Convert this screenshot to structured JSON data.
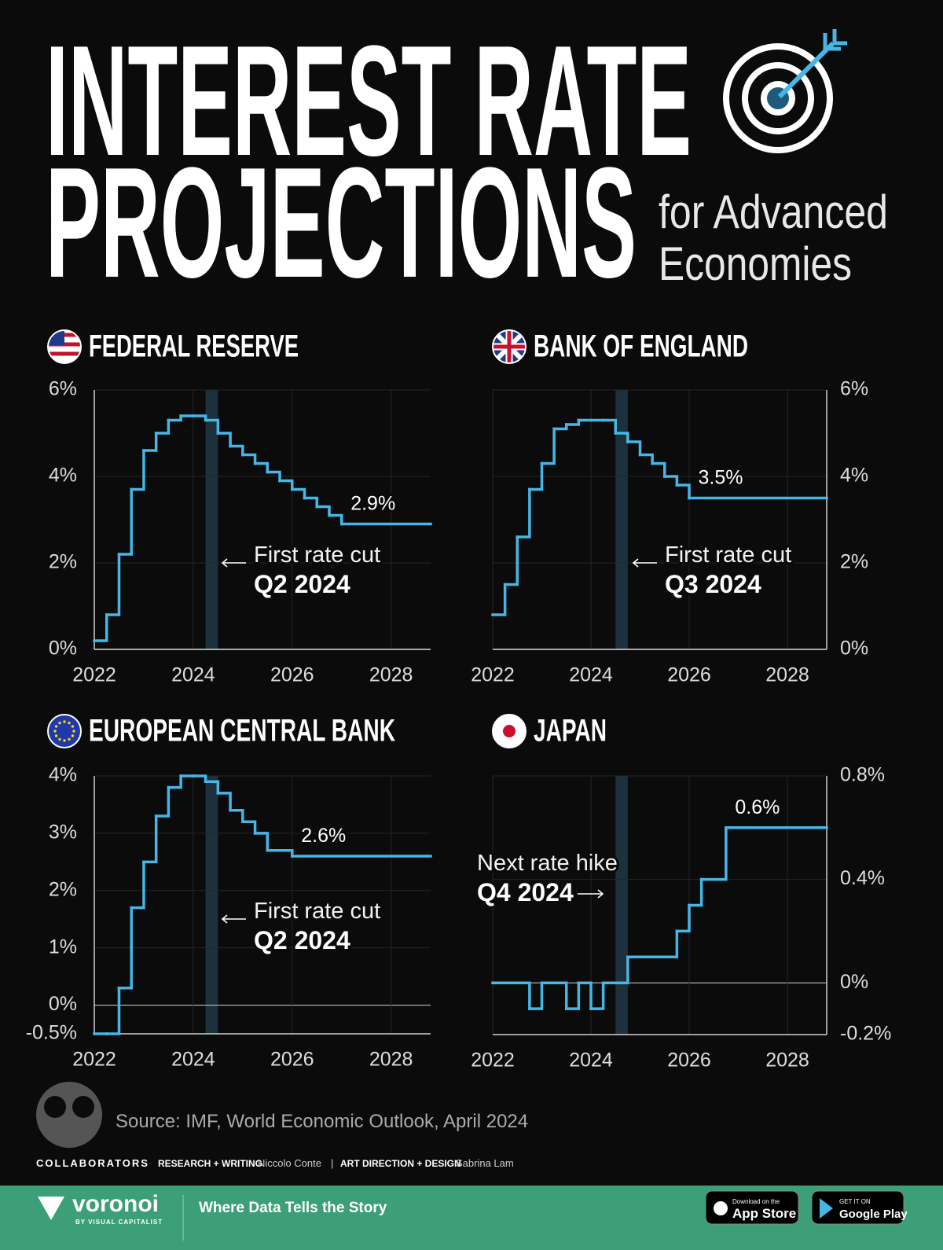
{
  "title_lines": [
    "INTEREST RATE",
    "PROJECTIONS"
  ],
  "subtitle_lines": [
    "for Advanced",
    "Economies"
  ],
  "chart_data": [
    {
      "type": "line",
      "step": "post",
      "title": "FEDERAL RESERVE",
      "flag": "us",
      "color": "#45b6e6",
      "x": [
        2022,
        2022.25,
        2022.5,
        2022.75,
        2023,
        2023.25,
        2023.5,
        2023.75,
        2024,
        2024.25,
        2024.5,
        2024.75,
        2025,
        2025.25,
        2025.5,
        2025.75,
        2026,
        2026.25,
        2026.5,
        2026.75,
        2027
      ],
      "values": [
        0.2,
        0.8,
        2.2,
        3.7,
        4.6,
        5.0,
        5.3,
        5.4,
        5.4,
        5.3,
        5.0,
        4.7,
        4.5,
        4.3,
        4.1,
        3.9,
        3.7,
        3.5,
        3.3,
        3.1,
        2.9
      ],
      "xlim": [
        2022,
        2028.8
      ],
      "xticks": [
        2022,
        2024,
        2026,
        2028
      ],
      "ylim": [
        0,
        6
      ],
      "yticks": [
        {
          "value": 0,
          "label": "0%"
        },
        {
          "value": 2,
          "label": "2%"
        },
        {
          "value": 4,
          "label": "4%"
        },
        {
          "value": 6,
          "label": "6%"
        }
      ],
      "y_axis_side": "left",
      "grid": true,
      "highlight_x": [
        2024.25,
        2024.5
      ],
      "annotation": {
        "text": "First rate cut",
        "date": "Q2 2024",
        "direction": "left"
      },
      "end_label": "2.9%"
    },
    {
      "type": "line",
      "step": "post",
      "title": "BANK OF ENGLAND",
      "flag": "uk",
      "color": "#45b6e6",
      "x": [
        2022,
        2022.25,
        2022.5,
        2022.75,
        2023,
        2023.25,
        2023.5,
        2023.75,
        2024,
        2024.25,
        2024.5,
        2024.75,
        2025,
        2025.25,
        2025.5,
        2025.75,
        2026
      ],
      "values": [
        0.8,
        1.5,
        2.6,
        3.7,
        4.3,
        5.1,
        5.2,
        5.3,
        5.3,
        5.3,
        5.0,
        4.8,
        4.5,
        4.3,
        4.0,
        3.8,
        3.5
      ],
      "xlim": [
        2022,
        2028.8
      ],
      "xticks": [
        2022,
        2024,
        2026,
        2028
      ],
      "ylim": [
        0,
        6
      ],
      "yticks": [
        {
          "value": 0,
          "label": "0%"
        },
        {
          "value": 2,
          "label": "2%"
        },
        {
          "value": 4,
          "label": "4%"
        },
        {
          "value": 6,
          "label": "6%"
        }
      ],
      "y_axis_side": "right",
      "grid": true,
      "highlight_x": [
        2024.5,
        2024.75
      ],
      "annotation": {
        "text": "First rate cut",
        "date": "Q3 2024",
        "direction": "left"
      },
      "end_label": "3.5%"
    },
    {
      "type": "line",
      "step": "post",
      "title": "EUROPEAN CENTRAL BANK",
      "flag": "eu",
      "color": "#45b6e6",
      "x": [
        2022,
        2022.25,
        2022.5,
        2022.75,
        2023,
        2023.25,
        2023.5,
        2023.75,
        2024,
        2024.25,
        2024.5,
        2024.75,
        2025,
        2025.25,
        2025.5,
        2025.75,
        2026
      ],
      "values": [
        -0.5,
        -0.5,
        0.3,
        1.7,
        2.5,
        3.3,
        3.8,
        4.0,
        4.0,
        3.9,
        3.7,
        3.4,
        3.2,
        3.0,
        2.7,
        2.7,
        2.6
      ],
      "xlim": [
        2022,
        2028.8
      ],
      "xticks": [
        2022,
        2024,
        2026,
        2028
      ],
      "ylim": [
        -0.5,
        4
      ],
      "yticks": [
        {
          "value": -0.5,
          "label": "-0.5%"
        },
        {
          "value": 0,
          "label": "0%"
        },
        {
          "value": 1,
          "label": "1%"
        },
        {
          "value": 2,
          "label": "2%"
        },
        {
          "value": 3,
          "label": "3%"
        },
        {
          "value": 4,
          "label": "4%"
        }
      ],
      "y_axis_side": "left",
      "grid": true,
      "highlight_x": [
        2024.25,
        2024.5
      ],
      "annotation": {
        "text": "First rate cut",
        "date": "Q2 2024",
        "direction": "left"
      },
      "end_label": "2.6%"
    },
    {
      "type": "line",
      "step": "post",
      "title": "JAPAN",
      "flag": "jp",
      "color": "#45b6e6",
      "x": [
        2022,
        2022.75,
        2023,
        2023.5,
        2023.75,
        2024,
        2024.25,
        2024.75,
        2025.75,
        2026,
        2026.25,
        2026.75
      ],
      "values": [
        0,
        -0.1,
        0,
        -0.1,
        0,
        -0.1,
        0,
        0.1,
        0.2,
        0.3,
        0.4,
        0.6
      ],
      "xlim": [
        2022,
        2028.8
      ],
      "xticks": [
        2022,
        2024,
        2026,
        2028
      ],
      "ylim": [
        -0.2,
        0.8
      ],
      "yticks": [
        {
          "value": -0.2,
          "label": "-0.2%"
        },
        {
          "value": 0,
          "label": "0%"
        },
        {
          "value": 0.4,
          "label": "0.4%"
        },
        {
          "value": 0.8,
          "label": "0.8%"
        }
      ],
      "y_axis_side": "right",
      "grid": true,
      "highlight_x": [
        2024.5,
        2024.75
      ],
      "annotation": {
        "text": "Next rate hike",
        "date": "Q4 2024",
        "direction": "right"
      },
      "end_label": "0.6%"
    }
  ],
  "source": "Source: IMF, World Economic Outlook, April 2024",
  "credits": {
    "label": "COLLABORATORS",
    "research_label": "RESEARCH + WRITING",
    "research": "Niccolo Conte",
    "separator": "|",
    "design_label": "ART DIRECTION + DESIGN",
    "design": "Sabrina Lam"
  },
  "footer": {
    "brand": "voronoi",
    "brand_sub": "BY VISUAL CAPITALIST",
    "tagline": "Where Data Tells the Story",
    "app_store": [
      "Download on the",
      "App Store"
    ],
    "google_play": [
      "GET IT ON",
      "Google Play"
    ]
  }
}
